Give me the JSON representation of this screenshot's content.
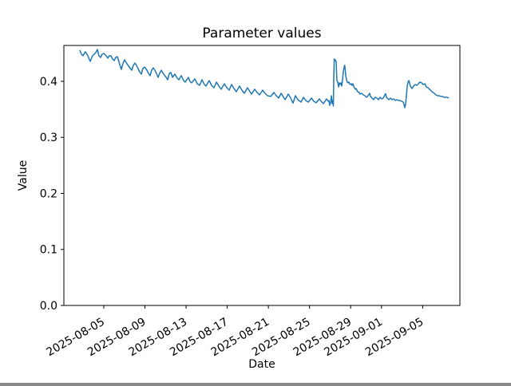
{
  "window": {
    "background": "#ffffff"
  },
  "chart_data": {
    "type": "line",
    "title": "Parameter values",
    "xlabel": "Date",
    "ylabel": "Value",
    "grid": false,
    "legend": null,
    "axis_color": "#000000",
    "x_unit": "days since 2025-08-01 00:00",
    "x_domain": [
      0.12,
      38.62
    ],
    "y_domain": [
      0.0,
      0.464
    ],
    "x_tick_rotation_deg": 30,
    "x_ticks": [
      {
        "t": 4,
        "label": "2025-08-05"
      },
      {
        "t": 8,
        "label": "2025-08-09"
      },
      {
        "t": 12,
        "label": "2025-08-13"
      },
      {
        "t": 16,
        "label": "2025-08-17"
      },
      {
        "t": 20,
        "label": "2025-08-21"
      },
      {
        "t": 24,
        "label": "2025-08-25"
      },
      {
        "t": 28,
        "label": "2025-08-29"
      },
      {
        "t": 31,
        "label": "2025-09-01"
      },
      {
        "t": 35,
        "label": "2025-09-05"
      }
    ],
    "y_ticks": [
      {
        "v": 0.0,
        "label": "0.0"
      },
      {
        "v": 0.1,
        "label": "0.1"
      },
      {
        "v": 0.2,
        "label": "0.2"
      },
      {
        "v": 0.3,
        "label": "0.3"
      },
      {
        "v": 0.4,
        "label": "0.4"
      }
    ],
    "series": [
      {
        "name": "Parameter value",
        "color": "#1f77b4",
        "points": [
          [
            1.67,
            0.4555
          ],
          [
            1.83,
            0.4484
          ],
          [
            1.98,
            0.4456
          ],
          [
            2.21,
            0.4527
          ],
          [
            2.45,
            0.4456
          ],
          [
            2.68,
            0.4356
          ],
          [
            2.91,
            0.4456
          ],
          [
            3.07,
            0.4484
          ],
          [
            3.22,
            0.4512
          ],
          [
            3.38,
            0.4569
          ],
          [
            3.53,
            0.4456
          ],
          [
            3.69,
            0.4427
          ],
          [
            3.84,
            0.4484
          ],
          [
            4.0,
            0.4498
          ],
          [
            4.23,
            0.4456
          ],
          [
            4.39,
            0.4413
          ],
          [
            4.54,
            0.4456
          ],
          [
            4.7,
            0.4456
          ],
          [
            4.85,
            0.4399
          ],
          [
            5.01,
            0.437
          ],
          [
            5.16,
            0.4427
          ],
          [
            5.32,
            0.4441
          ],
          [
            5.55,
            0.4298
          ],
          [
            5.71,
            0.4213
          ],
          [
            5.86,
            0.4313
          ],
          [
            6.02,
            0.4384
          ],
          [
            6.25,
            0.4313
          ],
          [
            6.48,
            0.4256
          ],
          [
            6.72,
            0.4199
          ],
          [
            6.87,
            0.4285
          ],
          [
            7.03,
            0.4327
          ],
          [
            7.26,
            0.4256
          ],
          [
            7.49,
            0.4171
          ],
          [
            7.65,
            0.4128
          ],
          [
            7.8,
            0.4228
          ],
          [
            7.96,
            0.4256
          ],
          [
            8.19,
            0.4199
          ],
          [
            8.35,
            0.4142
          ],
          [
            8.5,
            0.41
          ],
          [
            8.66,
            0.4199
          ],
          [
            8.81,
            0.4242
          ],
          [
            9.05,
            0.4171
          ],
          [
            9.28,
            0.4071
          ],
          [
            9.43,
            0.4142
          ],
          [
            9.59,
            0.4199
          ],
          [
            9.82,
            0.4128
          ],
          [
            10.06,
            0.4071
          ],
          [
            10.21,
            0.4028
          ],
          [
            10.37,
            0.4142
          ],
          [
            10.52,
            0.4157
          ],
          [
            10.68,
            0.4071
          ],
          [
            10.91,
            0.4128
          ],
          [
            11.14,
            0.4057
          ],
          [
            11.3,
            0.4028
          ],
          [
            11.53,
            0.41
          ],
          [
            11.76,
            0.4014
          ],
          [
            11.92,
            0.3986
          ],
          [
            12.23,
            0.4071
          ],
          [
            12.38,
            0.4
          ],
          [
            12.54,
            0.3972
          ],
          [
            12.85,
            0.4043
          ],
          [
            13.08,
            0.3957
          ],
          [
            13.32,
            0.3929
          ],
          [
            13.55,
            0.4028
          ],
          [
            13.78,
            0.3943
          ],
          [
            13.94,
            0.3915
          ],
          [
            14.25,
            0.4014
          ],
          [
            14.48,
            0.3929
          ],
          [
            14.71,
            0.3886
          ],
          [
            14.95,
            0.3986
          ],
          [
            15.18,
            0.3915
          ],
          [
            15.41,
            0.3858
          ],
          [
            15.72,
            0.3957
          ],
          [
            15.96,
            0.3886
          ],
          [
            16.19,
            0.3843
          ],
          [
            16.42,
            0.3943
          ],
          [
            16.66,
            0.3872
          ],
          [
            16.89,
            0.3815
          ],
          [
            17.2,
            0.3915
          ],
          [
            17.43,
            0.3843
          ],
          [
            17.66,
            0.3786
          ],
          [
            17.97,
            0.3886
          ],
          [
            18.21,
            0.3815
          ],
          [
            18.36,
            0.3772
          ],
          [
            18.67,
            0.3858
          ],
          [
            18.91,
            0.3801
          ],
          [
            19.14,
            0.3758
          ],
          [
            19.45,
            0.3843
          ],
          [
            19.68,
            0.3786
          ],
          [
            19.92,
            0.3744
          ],
          [
            20.23,
            0.373
          ],
          [
            20.54,
            0.3801
          ],
          [
            20.77,
            0.3744
          ],
          [
            21.0,
            0.3701
          ],
          [
            21.24,
            0.3786
          ],
          [
            21.47,
            0.3715
          ],
          [
            21.63,
            0.3672
          ],
          [
            21.94,
            0.3772
          ],
          [
            22.17,
            0.3701
          ],
          [
            22.4,
            0.361
          ],
          [
            22.63,
            0.3744
          ],
          [
            22.87,
            0.3672
          ],
          [
            23.18,
            0.363
          ],
          [
            23.41,
            0.3715
          ],
          [
            23.64,
            0.3658
          ],
          [
            23.88,
            0.363
          ],
          [
            24.19,
            0.3701
          ],
          [
            24.42,
            0.3644
          ],
          [
            24.65,
            0.3616
          ],
          [
            24.96,
            0.3687
          ],
          [
            25.12,
            0.3644
          ],
          [
            25.35,
            0.3601
          ],
          [
            25.66,
            0.3687
          ],
          [
            25.82,
            0.3644
          ],
          [
            25.89,
            0.3658
          ],
          [
            25.97,
            0.3573
          ],
          [
            26.05,
            0.363
          ],
          [
            26.13,
            0.3744
          ],
          [
            26.2,
            0.3601
          ],
          [
            26.28,
            0.3658
          ],
          [
            26.32,
            0.3559
          ],
          [
            26.36,
            0.41
          ],
          [
            26.4,
            0.4399
          ],
          [
            26.43,
            0.437
          ],
          [
            26.51,
            0.4384
          ],
          [
            26.59,
            0.4342
          ],
          [
            26.63,
            0.4171
          ],
          [
            26.67,
            0.4014
          ],
          [
            26.75,
            0.3986
          ],
          [
            26.82,
            0.39
          ],
          [
            26.9,
            0.3972
          ],
          [
            26.98,
            0.3943
          ],
          [
            27.06,
            0.3972
          ],
          [
            27.13,
            0.3915
          ],
          [
            27.21,
            0.4028
          ],
          [
            27.29,
            0.4171
          ],
          [
            27.37,
            0.4256
          ],
          [
            27.42,
            0.4285
          ],
          [
            27.48,
            0.4199
          ],
          [
            27.52,
            0.41
          ],
          [
            27.6,
            0.4028
          ],
          [
            27.67,
            0.3986
          ],
          [
            27.75,
            0.3972
          ],
          [
            27.83,
            0.3986
          ],
          [
            27.91,
            0.3957
          ],
          [
            27.98,
            0.3943
          ],
          [
            28.06,
            0.3957
          ],
          [
            28.14,
            0.3929
          ],
          [
            28.22,
            0.3957
          ],
          [
            28.29,
            0.3915
          ],
          [
            28.37,
            0.3886
          ],
          [
            28.45,
            0.3858
          ],
          [
            28.53,
            0.3872
          ],
          [
            28.6,
            0.3843
          ],
          [
            28.68,
            0.3815
          ],
          [
            28.84,
            0.3801
          ],
          [
            28.91,
            0.3772
          ],
          [
            29.07,
            0.3786
          ],
          [
            29.23,
            0.3758
          ],
          [
            29.38,
            0.3744
          ],
          [
            29.54,
            0.3715
          ],
          [
            29.69,
            0.3744
          ],
          [
            29.85,
            0.3786
          ],
          [
            29.93,
            0.373
          ],
          [
            30.08,
            0.3701
          ],
          [
            30.24,
            0.3672
          ],
          [
            30.39,
            0.3715
          ],
          [
            30.55,
            0.3701
          ],
          [
            30.7,
            0.3672
          ],
          [
            30.86,
            0.3715
          ],
          [
            31.01,
            0.3687
          ],
          [
            31.17,
            0.3701
          ],
          [
            31.33,
            0.3758
          ],
          [
            31.4,
            0.3781
          ],
          [
            31.48,
            0.3715
          ],
          [
            31.64,
            0.3687
          ],
          [
            31.71,
            0.3672
          ],
          [
            31.87,
            0.3701
          ],
          [
            32.02,
            0.3672
          ],
          [
            32.18,
            0.3687
          ],
          [
            32.34,
            0.3658
          ],
          [
            32.49,
            0.3672
          ],
          [
            32.65,
            0.3658
          ],
          [
            32.8,
            0.3658
          ],
          [
            32.96,
            0.3644
          ],
          [
            33.11,
            0.363
          ],
          [
            33.19,
            0.3587
          ],
          [
            33.27,
            0.353
          ],
          [
            33.35,
            0.3601
          ],
          [
            33.42,
            0.3744
          ],
          [
            33.5,
            0.3915
          ],
          [
            33.58,
            0.3986
          ],
          [
            33.66,
            0.4014
          ],
          [
            33.81,
            0.3915
          ],
          [
            33.97,
            0.3872
          ],
          [
            34.12,
            0.3915
          ],
          [
            34.28,
            0.3943
          ],
          [
            34.43,
            0.3929
          ],
          [
            34.59,
            0.3957
          ],
          [
            34.74,
            0.3986
          ],
          [
            34.9,
            0.3972
          ],
          [
            35.05,
            0.3943
          ],
          [
            35.21,
            0.3957
          ],
          [
            35.37,
            0.39
          ],
          [
            35.52,
            0.3886
          ],
          [
            35.68,
            0.3858
          ],
          [
            35.83,
            0.3829
          ],
          [
            35.99,
            0.3801
          ],
          [
            36.14,
            0.3786
          ],
          [
            36.3,
            0.3758
          ],
          [
            36.45,
            0.3744
          ],
          [
            36.61,
            0.3744
          ],
          [
            36.76,
            0.373
          ],
          [
            36.92,
            0.373
          ],
          [
            37.07,
            0.3715
          ],
          [
            37.23,
            0.3715
          ],
          [
            37.38,
            0.3715
          ],
          [
            37.54,
            0.3701
          ]
        ]
      }
    ]
  }
}
